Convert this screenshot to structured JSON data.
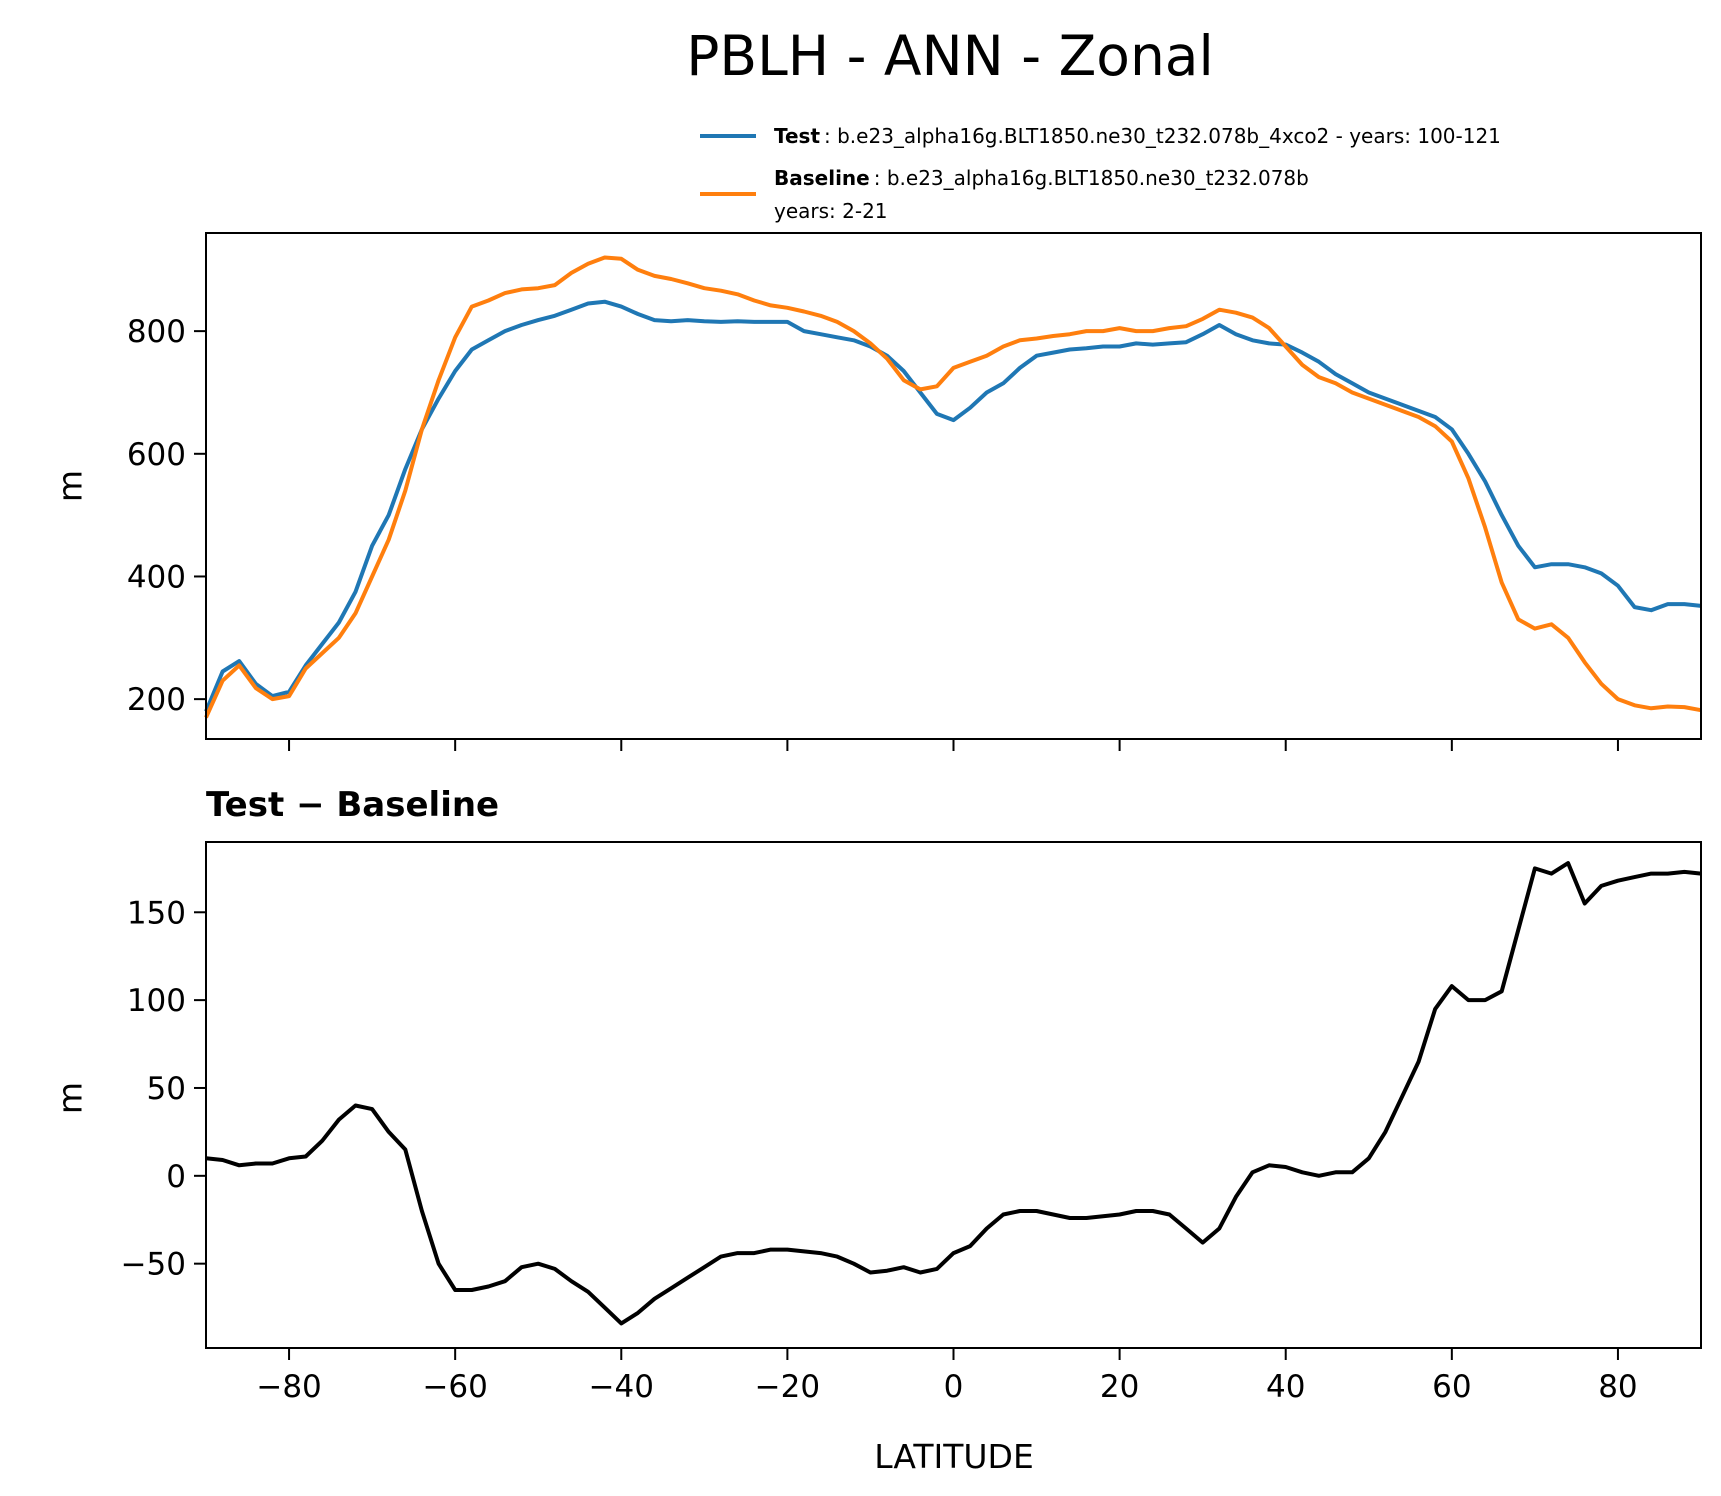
{
  "figure": {
    "title": "PBLH - ANN - Zonal",
    "xlabel": "LATITUDE"
  },
  "legend": {
    "test_label": "Test",
    "test_desc": ": b.e23_alpha16g.BLT1850.ne30_t232.078b_4xco2 - years: 100-121",
    "baseline_label": "Baseline",
    "baseline_desc": ": b.e23_alpha16g.BLT1850.ne30_t232.078b",
    "baseline_years": "years: 2-21"
  },
  "colors": {
    "test": "#1f77b4",
    "baseline": "#ff7f0e",
    "diff": "#000000"
  },
  "chart_data": [
    {
      "type": "line",
      "title": "",
      "ylabel": "m",
      "xlim": [
        -90,
        90
      ],
      "ylim": [
        135,
        960
      ],
      "xticks": [
        -80,
        -60,
        -40,
        -20,
        0,
        20,
        40,
        60,
        80
      ],
      "yticks": [
        200,
        400,
        600,
        800
      ],
      "x": [
        -90,
        -88,
        -86,
        -84,
        -82,
        -80,
        -78,
        -76,
        -74,
        -72,
        -70,
        -68,
        -66,
        -64,
        -62,
        -60,
        -58,
        -56,
        -54,
        -52,
        -50,
        -48,
        -46,
        -44,
        -42,
        -40,
        -38,
        -36,
        -34,
        -32,
        -30,
        -28,
        -26,
        -24,
        -22,
        -20,
        -18,
        -16,
        -14,
        -12,
        -10,
        -8,
        -6,
        -4,
        -2,
        0,
        2,
        4,
        6,
        8,
        10,
        12,
        14,
        16,
        18,
        20,
        22,
        24,
        26,
        28,
        30,
        32,
        34,
        36,
        38,
        40,
        42,
        44,
        46,
        48,
        50,
        52,
        54,
        56,
        58,
        60,
        62,
        64,
        66,
        68,
        70,
        72,
        74,
        76,
        78,
        80,
        82,
        84,
        86,
        88,
        90
      ],
      "series": [
        {
          "name": "Test",
          "values": [
            180,
            245,
            262,
            225,
            205,
            212,
            255,
            290,
            325,
            375,
            450,
            500,
            575,
            640,
            690,
            735,
            770,
            785,
            800,
            810,
            818,
            825,
            835,
            845,
            848,
            840,
            828,
            818,
            816,
            818,
            816,
            815,
            816,
            815,
            815,
            815,
            800,
            795,
            790,
            785,
            775,
            760,
            735,
            700,
            665,
            655,
            675,
            700,
            715,
            740,
            760,
            765,
            770,
            772,
            775,
            775,
            780,
            778,
            780,
            782,
            795,
            810,
            795,
            785,
            780,
            778,
            765,
            750,
            730,
            715,
            700,
            690,
            680,
            670,
            660,
            640,
            600,
            555,
            500,
            450,
            415,
            420,
            420,
            415,
            405,
            385,
            350,
            345,
            355,
            355,
            352
          ]
        },
        {
          "name": "Baseline",
          "values": [
            170,
            230,
            255,
            218,
            200,
            205,
            250,
            275,
            300,
            340,
            400,
            460,
            540,
            640,
            720,
            790,
            840,
            850,
            862,
            868,
            870,
            875,
            895,
            910,
            920,
            918,
            900,
            890,
            885,
            878,
            870,
            866,
            860,
            850,
            842,
            838,
            832,
            825,
            815,
            800,
            780,
            755,
            720,
            705,
            710,
            740,
            750,
            760,
            775,
            785,
            788,
            792,
            795,
            800,
            800,
            805,
            800,
            800,
            805,
            808,
            820,
            835,
            830,
            822,
            805,
            775,
            745,
            725,
            715,
            700,
            690,
            680,
            670,
            660,
            645,
            620,
            560,
            480,
            390,
            330,
            315,
            322,
            300,
            260,
            225,
            200,
            190,
            185,
            188,
            187,
            182
          ]
        }
      ]
    },
    {
      "type": "line",
      "title": "Test − Baseline",
      "ylabel": "m",
      "xlabel": "LATITUDE",
      "xlim": [
        -90,
        90
      ],
      "ylim": [
        -98,
        190
      ],
      "xticks": [
        -80,
        -60,
        -40,
        -20,
        0,
        20,
        40,
        60,
        80
      ],
      "yticks": [
        -50,
        0,
        50,
        100,
        150
      ],
      "x": [
        -90,
        -88,
        -86,
        -84,
        -82,
        -80,
        -78,
        -76,
        -74,
        -72,
        -70,
        -68,
        -66,
        -64,
        -62,
        -60,
        -58,
        -56,
        -54,
        -52,
        -50,
        -48,
        -46,
        -44,
        -42,
        -40,
        -38,
        -36,
        -34,
        -32,
        -30,
        -28,
        -26,
        -24,
        -22,
        -20,
        -18,
        -16,
        -14,
        -12,
        -10,
        -8,
        -6,
        -4,
        -2,
        0,
        2,
        4,
        6,
        8,
        10,
        12,
        14,
        16,
        18,
        20,
        22,
        24,
        26,
        28,
        30,
        32,
        34,
        36,
        38,
        40,
        42,
        44,
        46,
        48,
        50,
        52,
        54,
        56,
        58,
        60,
        62,
        64,
        66,
        68,
        70,
        72,
        74,
        76,
        78,
        80,
        82,
        84,
        86,
        88,
        90
      ],
      "series": [
        {
          "name": "Test − Baseline",
          "values": [
            10,
            9,
            6,
            7,
            7,
            10,
            11,
            20,
            32,
            40,
            38,
            25,
            15,
            -20,
            -50,
            -65,
            -65,
            -63,
            -60,
            -52,
            -50,
            -53,
            -60,
            -66,
            -75,
            -84,
            -78,
            -70,
            -64,
            -58,
            -52,
            -46,
            -44,
            -44,
            -42,
            -42,
            -43,
            -44,
            -46,
            -50,
            -55,
            -54,
            -52,
            -55,
            -53,
            -44,
            -40,
            -30,
            -22,
            -20,
            -20,
            -22,
            -24,
            -24,
            -23,
            -22,
            -20,
            -20,
            -22,
            -30,
            -38,
            -30,
            -12,
            2,
            6,
            5,
            2,
            0,
            2,
            2,
            10,
            25,
            45,
            65,
            95,
            108,
            100,
            100,
            105,
            140,
            175,
            172,
            178,
            155,
            165,
            168,
            170,
            172,
            172,
            173,
            172
          ]
        }
      ]
    }
  ]
}
